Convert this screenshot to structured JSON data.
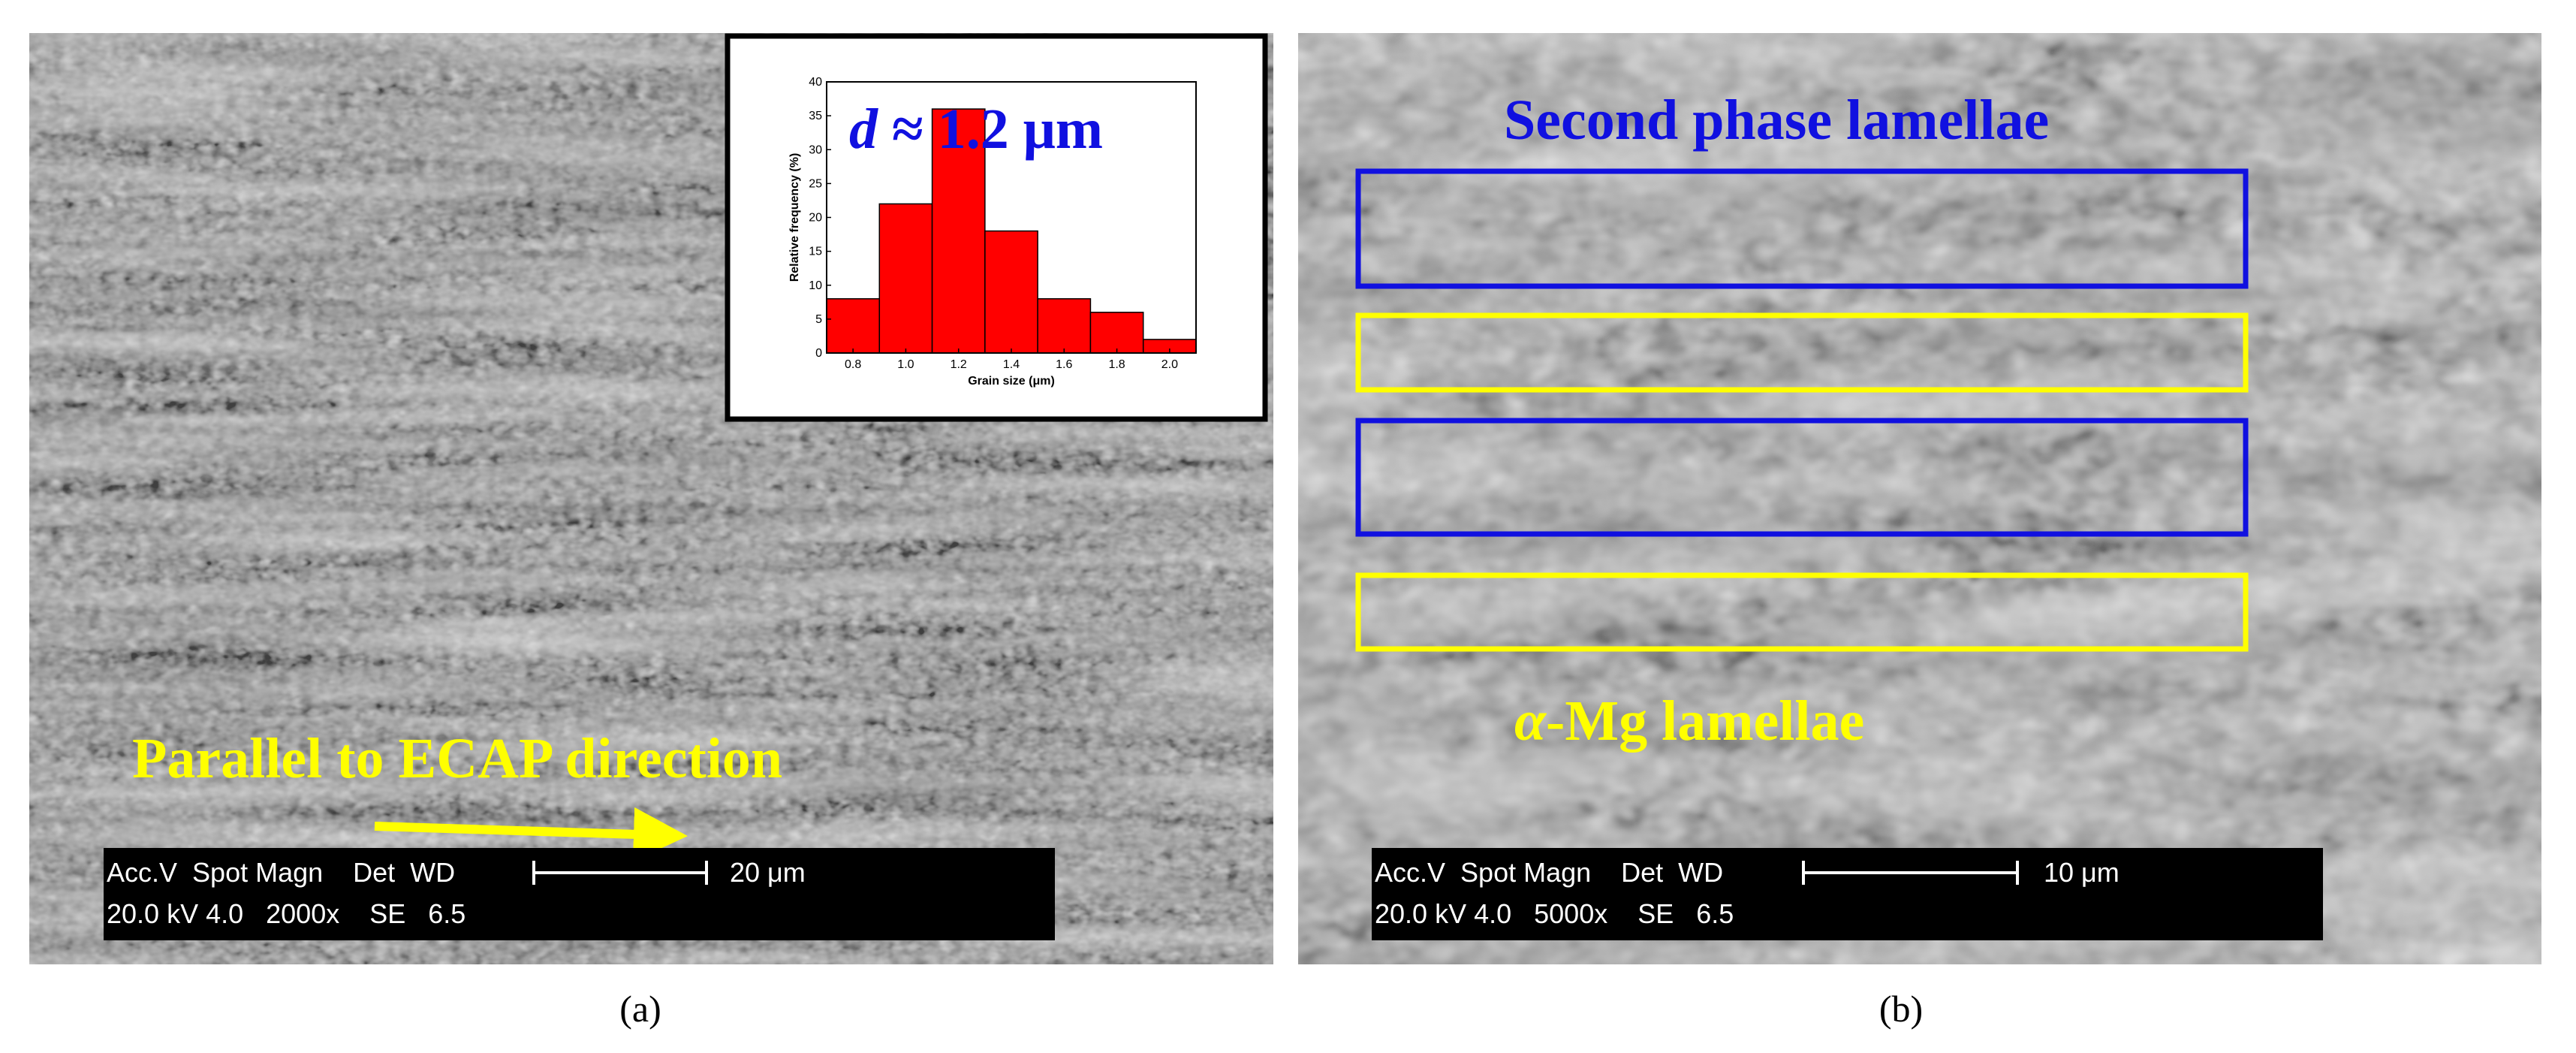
{
  "panels": [
    {
      "label": "(a)",
      "scale_bar": {
        "header": "Acc.V  Spot Magn    Det  WD",
        "values": "20.0 kV 4.0   2000x    SE   6.5",
        "length": "20 μm"
      },
      "annotation": "Parallel to ECAP direction"
    },
    {
      "label": "(b)",
      "scale_bar": {
        "header": "Acc.V  Spot Magn    Det  WD",
        "values": "20.0 kV 4.0   5000x    SE   6.5",
        "length": "10 μm"
      },
      "annotation_top": "Second phase lamellae",
      "annotation_bottom": {
        "symbol": "α",
        "text": "-Mg lamellae"
      }
    }
  ],
  "chart_data": {
    "type": "histogram",
    "annotation": {
      "symbol": "d",
      "text": " ≈ 1.2 μm"
    },
    "x_label": "Grain size (μm)",
    "y_label": "Relative frequency (%)",
    "bins": [
      0.7,
      0.9,
      1.1,
      1.3,
      1.5,
      1.7,
      1.9,
      2.1
    ],
    "values": [
      8,
      22,
      36,
      18,
      8,
      6,
      2
    ],
    "color": "#ff0000",
    "xlim": [
      0.7,
      2.1
    ],
    "ylim": [
      0,
      40
    ],
    "xticks": [
      0.8,
      {
        "value": 1,
        "label": "1.0"
      },
      1.2,
      1.4,
      1.6,
      1.8,
      {
        "value": 2,
        "label": "2.0"
      }
    ],
    "yticks": [
      0,
      5,
      10,
      15,
      20,
      25,
      30,
      35,
      40
    ]
  }
}
